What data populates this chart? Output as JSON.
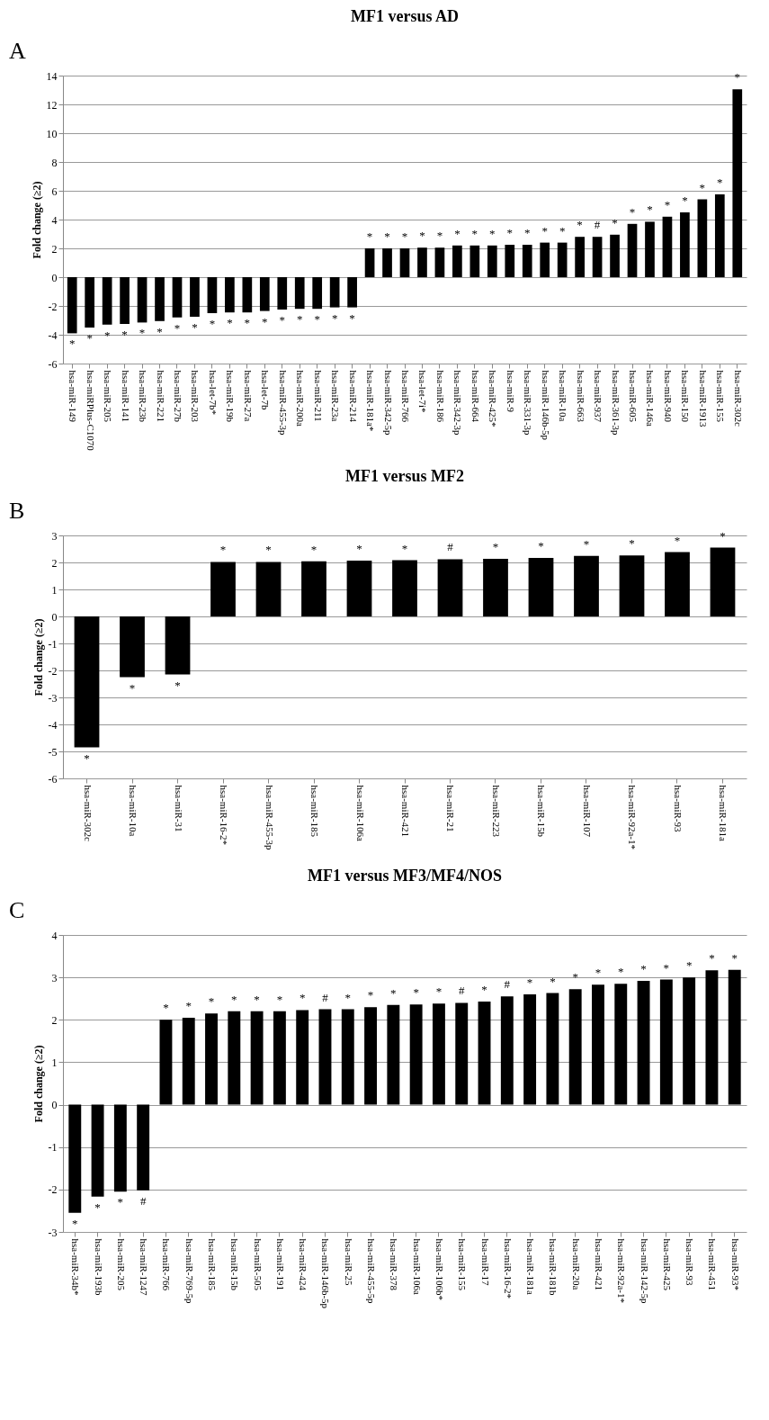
{
  "chart_data": [
    {
      "type": "bar",
      "title": "MF1 versus AD",
      "ylabel": "Fold change (≥2)",
      "color": "#000000",
      "grid": "y",
      "ylim": [
        -6,
        14
      ],
      "yticks": [
        -6,
        -4,
        -2,
        0,
        2,
        4,
        6,
        8,
        10,
        12,
        14
      ],
      "categories": [
        "hsa-miR-149",
        "hsa-miRPlus-C1070",
        "hsa-miR-205",
        "hsa-miR-141",
        "hsa-miR-23b",
        "hsa-miR-221",
        "hsa-miR-27b",
        "hsa-miR-203",
        "hsa-let-7b*",
        "hsa-miR-19b",
        "hsa-miR-27a",
        "hsa-let-7b",
        "hsa-miR-455-3p",
        "hsa-miR-200a",
        "hsa-miR-211",
        "hsa-miR-23a",
        "hsa-miR-214",
        "hsa-miR-181a*",
        "hsa-miR-342-5p",
        "hsa-miR-766",
        "hsa-let-7i*",
        "hsa-miR-186",
        "hsa-miR-342-3p",
        "hsa-miR-664",
        "hsa-miR-425*",
        "hsa-miR-9",
        "hsa-miR-331-3p",
        "hsa-miR-146b-5p",
        "hsa-miR-10a",
        "hsa-miR-663",
        "hsa-miR-937",
        "hsa-miR-361-3p",
        "hsa-miR-605",
        "hsa-miR-146a",
        "hsa-miR-940",
        "hsa-miR-150",
        "hsa-miR-1913",
        "hsa-miR-155",
        "hsa-miR-302c"
      ],
      "values": [
        -3.9,
        -3.5,
        -3.3,
        -3.25,
        -3.15,
        -3.05,
        -2.8,
        -2.75,
        -2.5,
        -2.45,
        -2.45,
        -2.35,
        -2.25,
        -2.2,
        -2.2,
        -2.1,
        -2.1,
        2.0,
        2.0,
        2.0,
        2.05,
        2.05,
        2.2,
        2.2,
        2.2,
        2.25,
        2.25,
        2.4,
        2.4,
        2.8,
        2.8,
        2.95,
        3.7,
        3.85,
        4.2,
        4.5,
        5.4,
        5.75,
        13.05
      ],
      "annotations": [
        "A",
        {
          "text": "*",
          "x": "hsa-miR-149",
          "y": -3.9
        },
        {
          "text": "*",
          "x": "hsa-miRPlus-C1070",
          "y": -3.5
        },
        {
          "text": "*",
          "x": "hsa-miR-205",
          "y": -3.3
        },
        {
          "text": "*",
          "x": "hsa-miR-141",
          "y": -3.25
        },
        {
          "text": "*",
          "x": "hsa-miR-23b",
          "y": -3.15
        },
        {
          "text": "*",
          "x": "hsa-miR-221",
          "y": -3.05
        },
        {
          "text": "*",
          "x": "hsa-miR-27b",
          "y": -2.8
        },
        {
          "text": "*",
          "x": "hsa-miR-203",
          "y": -2.75
        },
        {
          "text": "*",
          "x": "hsa-let-7b*",
          "y": -2.5
        },
        {
          "text": "*",
          "x": "hsa-miR-19b",
          "y": -2.45
        },
        {
          "text": "*",
          "x": "hsa-miR-27a",
          "y": -2.45
        },
        {
          "text": "*",
          "x": "hsa-let-7b",
          "y": -2.35
        },
        {
          "text": "*",
          "x": "hsa-miR-455-3p",
          "y": -2.25
        },
        {
          "text": "*",
          "x": "hsa-miR-200a",
          "y": -2.2
        },
        {
          "text": "*",
          "x": "hsa-miR-211",
          "y": -2.2
        },
        {
          "text": "*",
          "x": "hsa-miR-23a",
          "y": -2.1
        },
        {
          "text": "*",
          "x": "hsa-miR-214",
          "y": -2.1
        },
        {
          "text": "*",
          "x": "hsa-miR-181a*",
          "y": 2.0
        },
        {
          "text": "*",
          "x": "hsa-miR-342-5p",
          "y": 2.0
        },
        {
          "text": "*",
          "x": "hsa-miR-766",
          "y": 2.0
        },
        {
          "text": "*",
          "x": "hsa-let-7i*",
          "y": 2.05
        },
        {
          "text": "*",
          "x": "hsa-miR-186",
          "y": 2.05
        },
        {
          "text": "*",
          "x": "hsa-miR-342-3p",
          "y": 2.2
        },
        {
          "text": "*",
          "x": "hsa-miR-664",
          "y": 2.2
        },
        {
          "text": "*",
          "x": "hsa-miR-425*",
          "y": 2.2
        },
        {
          "text": "*",
          "x": "hsa-miR-9",
          "y": 2.25
        },
        {
          "text": "*",
          "x": "hsa-miR-331-3p",
          "y": 2.25
        },
        {
          "text": "*",
          "x": "hsa-miR-146b-5p",
          "y": 2.4
        },
        {
          "text": "*",
          "x": "hsa-miR-10a",
          "y": 2.4
        },
        {
          "text": "*",
          "x": "hsa-miR-663",
          "y": 2.8
        },
        {
          "text": "#",
          "x": "hsa-miR-937",
          "y": 2.8
        },
        {
          "text": "*",
          "x": "hsa-miR-361-3p",
          "y": 2.95
        },
        {
          "text": "*",
          "x": "hsa-miR-605",
          "y": 3.7
        },
        {
          "text": "*",
          "x": "hsa-miR-146a",
          "y": 3.85
        },
        {
          "text": "*",
          "x": "hsa-miR-940",
          "y": 4.2
        },
        {
          "text": "*",
          "x": "hsa-miR-150",
          "y": 4.5
        },
        {
          "text": "*",
          "x": "hsa-miR-1913",
          "y": 5.4
        },
        {
          "text": "*",
          "x": "hsa-miR-155",
          "y": 5.75
        },
        {
          "text": "*",
          "x": "hsa-miR-302c",
          "y": 13.05
        }
      ]
    },
    {
      "type": "bar",
      "title": "MF1 versus MF2",
      "ylabel": "Fold change (≥2)",
      "color": "#000000",
      "grid": "y",
      "ylim": [
        -6,
        3
      ],
      "yticks": [
        -6,
        -5,
        -4,
        -3,
        -2,
        -1,
        0,
        1,
        2,
        3
      ],
      "categories": [
        "hsa-miR-302c",
        "hsa-miR-10a",
        "hsa-miR-31",
        "hsa-miR-16-2*",
        "hsa-miR-455-3p",
        "hsa-miR-185",
        "hsa-miR-106a",
        "hsa-miR-421",
        "hsa-miR-21",
        "hsa-miR-223",
        "hsa-miR-15b",
        "hsa-miR-107",
        "hsa-miR-92a-1*",
        "hsa-miR-93",
        "hsa-miR-181a"
      ],
      "values": [
        -4.85,
        -2.25,
        -2.15,
        2.02,
        2.02,
        2.04,
        2.07,
        2.08,
        2.12,
        2.13,
        2.17,
        2.24,
        2.26,
        2.38,
        2.55
      ],
      "annotations": [
        "B",
        {
          "text": "*",
          "x": "hsa-miR-302c",
          "y": -4.85
        },
        {
          "text": "*",
          "x": "hsa-miR-10a",
          "y": -2.25
        },
        {
          "text": "*",
          "x": "hsa-miR-31",
          "y": -2.15
        },
        {
          "text": "*",
          "x": "hsa-miR-16-2*",
          "y": 2.02
        },
        {
          "text": "*",
          "x": "hsa-miR-455-3p",
          "y": 2.02
        },
        {
          "text": "*",
          "x": "hsa-miR-185",
          "y": 2.04
        },
        {
          "text": "*",
          "x": "hsa-miR-106a",
          "y": 2.07
        },
        {
          "text": "*",
          "x": "hsa-miR-421",
          "y": 2.08
        },
        {
          "text": "#",
          "x": "hsa-miR-21",
          "y": 2.12
        },
        {
          "text": "*",
          "x": "hsa-miR-223",
          "y": 2.13
        },
        {
          "text": "*",
          "x": "hsa-miR-15b",
          "y": 2.17
        },
        {
          "text": "*",
          "x": "hsa-miR-107",
          "y": 2.24
        },
        {
          "text": "*",
          "x": "hsa-miR-92a-1*",
          "y": 2.26
        },
        {
          "text": "*",
          "x": "hsa-miR-93",
          "y": 2.38
        },
        {
          "text": "*",
          "x": "hsa-miR-181a",
          "y": 2.55
        }
      ]
    },
    {
      "type": "bar",
      "title": "MF1 versus MF3/MF4/NOS",
      "ylabel": "Fold change (≥2)",
      "color": "#000000",
      "grid": "y",
      "ylim": [
        -3,
        4
      ],
      "yticks": [
        -3,
        -2,
        -1,
        0,
        1,
        2,
        3,
        4
      ],
      "categories": [
        "hsa-miR-34b*",
        "hsa-miR-193b",
        "hsa-miR-205",
        "hsa-miR-1247",
        "hsa-miR-766",
        "hsa-miR-769-5p",
        "hsa-miR-185",
        "hsa-miR-15b",
        "hsa-miR-505",
        "hsa-miR-191",
        "hsa-miR-424",
        "hsa-miR-146b-5p",
        "hsa-miR-25",
        "hsa-miR-455-5p",
        "hsa-miR-378",
        "hsa-miR-106a",
        "hsa-miR-106b*",
        "hsa-miR-155",
        "hsa-miR-17",
        "hsa-miR-16-2*",
        "hsa-miR-181a",
        "hsa-miR-181b",
        "hsa-miR-20a",
        "hsa-miR-421",
        "hsa-miR-92a-1*",
        "hsa-miR-142-5p",
        "hsa-miR-425",
        "hsa-miR-93",
        "hsa-miR-451",
        "hsa-miR-93*"
      ],
      "values": [
        -2.55,
        -2.17,
        -2.05,
        -2.02,
        2.0,
        2.05,
        2.15,
        2.2,
        2.2,
        2.2,
        2.23,
        2.25,
        2.25,
        2.3,
        2.35,
        2.36,
        2.38,
        2.4,
        2.43,
        2.55,
        2.6,
        2.63,
        2.72,
        2.83,
        2.85,
        2.92,
        2.95,
        3.0,
        3.17,
        3.18
      ],
      "annotations": [
        "C",
        {
          "text": "*",
          "x": "hsa-miR-34b*",
          "y": -2.55
        },
        {
          "text": "*",
          "x": "hsa-miR-193b",
          "y": -2.17
        },
        {
          "text": "*",
          "x": "hsa-miR-205",
          "y": -2.05
        },
        {
          "text": "#",
          "x": "hsa-miR-1247",
          "y": -2.02
        },
        {
          "text": "*",
          "x": "hsa-miR-766",
          "y": 2.0
        },
        {
          "text": "*",
          "x": "hsa-miR-769-5p",
          "y": 2.05
        },
        {
          "text": "*",
          "x": "hsa-miR-185",
          "y": 2.15
        },
        {
          "text": "*",
          "x": "hsa-miR-15b",
          "y": 2.2
        },
        {
          "text": "*",
          "x": "hsa-miR-505",
          "y": 2.2
        },
        {
          "text": "*",
          "x": "hsa-miR-191",
          "y": 2.2
        },
        {
          "text": "*",
          "x": "hsa-miR-424",
          "y": 2.23
        },
        {
          "text": "#",
          "x": "hsa-miR-146b-5p",
          "y": 2.25
        },
        {
          "text": "*",
          "x": "hsa-miR-25",
          "y": 2.25
        },
        {
          "text": "*",
          "x": "hsa-miR-455-5p",
          "y": 2.3
        },
        {
          "text": "*",
          "x": "hsa-miR-378",
          "y": 2.35
        },
        {
          "text": "*",
          "x": "hsa-miR-106a",
          "y": 2.36
        },
        {
          "text": "*",
          "x": "hsa-miR-106b*",
          "y": 2.38
        },
        {
          "text": "#",
          "x": "hsa-miR-155",
          "y": 2.4
        },
        {
          "text": "*",
          "x": "hsa-miR-17",
          "y": 2.43
        },
        {
          "text": "#",
          "x": "hsa-miR-16-2*",
          "y": 2.55
        },
        {
          "text": "*",
          "x": "hsa-miR-181a",
          "y": 2.6
        },
        {
          "text": "*",
          "x": "hsa-miR-181b",
          "y": 2.63
        },
        {
          "text": "*",
          "x": "hsa-miR-20a",
          "y": 2.72
        },
        {
          "text": "*",
          "x": "hsa-miR-421",
          "y": 2.83
        },
        {
          "text": "*",
          "x": "hsa-miR-92a-1*",
          "y": 2.85
        },
        {
          "text": "*",
          "x": "hsa-miR-142-5p",
          "y": 2.92
        },
        {
          "text": "*",
          "x": "hsa-miR-425",
          "y": 2.95
        },
        {
          "text": "*",
          "x": "hsa-miR-93",
          "y": 3.0
        },
        {
          "text": "*",
          "x": "hsa-miR-451",
          "y": 3.17
        },
        {
          "text": "*",
          "x": "hsa-miR-93*",
          "y": 3.18
        }
      ]
    }
  ]
}
